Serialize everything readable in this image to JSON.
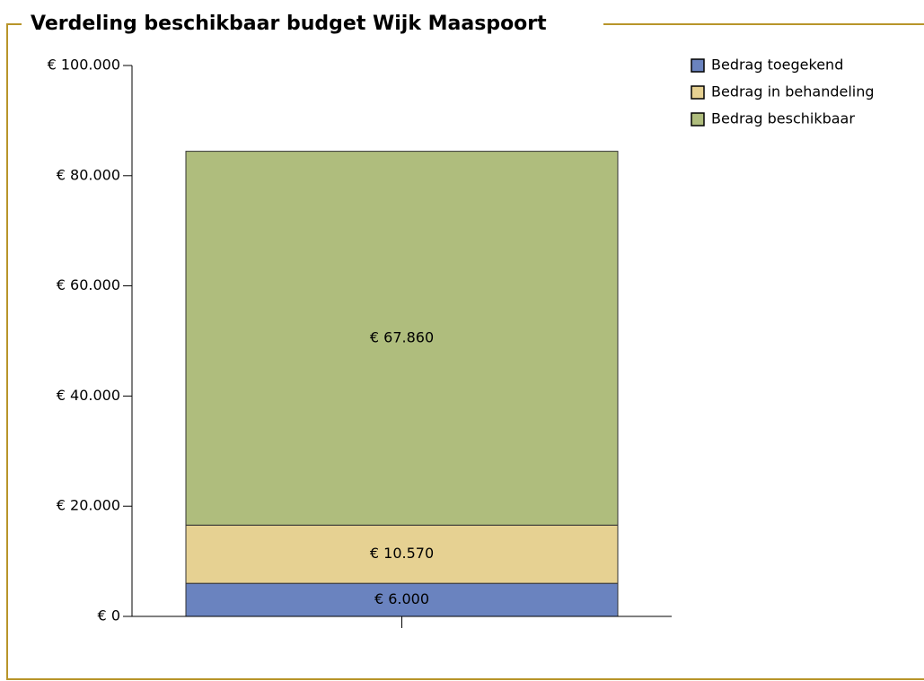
{
  "chart_data": {
    "type": "stacked_bar",
    "title": "Verdeling beschikbaar budget  Wijk Maaspoort",
    "categories": [
      null
    ],
    "series": [
      {
        "name": "Bedrag toegekend",
        "color": "#6a83bf",
        "values": [
          6000
        ],
        "value_labels": [
          "€ 6.000"
        ]
      },
      {
        "name": "Bedrag in behandeling",
        "color": "#e6d192",
        "values": [
          10570
        ],
        "value_labels": [
          "€ 10.570"
        ]
      },
      {
        "name": "Bedrag beschikbaar",
        "color": "#afbd7d",
        "values": [
          67860
        ],
        "value_labels": [
          "€ 67.860"
        ]
      }
    ],
    "ylim": [
      0,
      100000
    ],
    "yticks": [
      {
        "value": 0,
        "label": "€ 0"
      },
      {
        "value": 20000,
        "label": "€ 20.000"
      },
      {
        "value": 40000,
        "label": "€ 40.000"
      },
      {
        "value": 60000,
        "label": "€ 60.000"
      },
      {
        "value": 80000,
        "label": "€ 80.000"
      },
      {
        "value": 100000,
        "label": "€ 100.000"
      }
    ],
    "legend": "top-right"
  }
}
